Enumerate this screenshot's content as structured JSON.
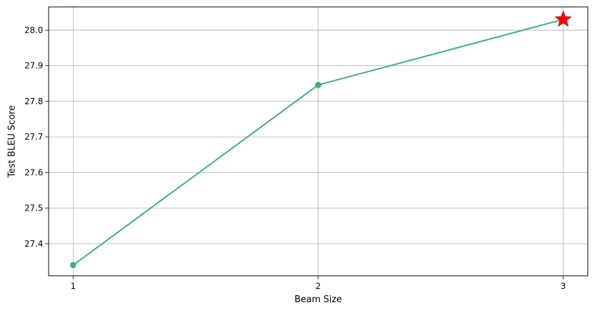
{
  "chart_data": {
    "type": "line",
    "title": "",
    "xlabel": "Beam Size",
    "ylabel": "Test BLEU Score",
    "x": [
      1,
      2,
      3
    ],
    "xticks": [
      "1",
      "2",
      "3"
    ],
    "xlim": [
      0.9,
      3.1
    ],
    "ylim": [
      27.31,
      28.065
    ],
    "yticks": [
      "27.4",
      "27.5",
      "27.6",
      "27.7",
      "27.8",
      "27.9",
      "28.0"
    ],
    "grid": true,
    "series": [
      {
        "values": [
          27.34,
          27.846,
          28.03
        ],
        "color": "#3cb371",
        "marker": "circle"
      }
    ],
    "highlight": {
      "x": 3,
      "y": 28.03,
      "marker": "star",
      "color": "#ff0000"
    }
  }
}
